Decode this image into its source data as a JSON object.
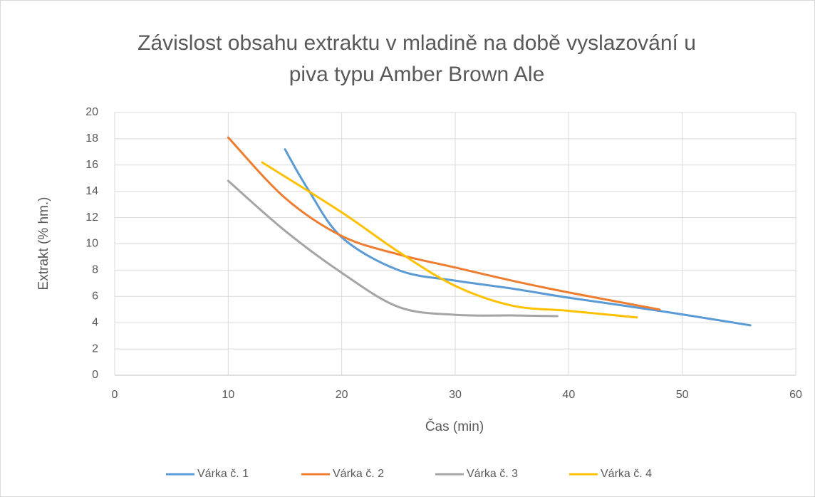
{
  "chart_data": {
    "type": "line",
    "title": [
      "Závislost obsahu extraktu v mladině na době vyslazování u",
      "piva typu Amber Brown Ale"
    ],
    "x_label": "Čas (min)",
    "y_label": "Extrakt (% hm.)",
    "xlim": [
      0,
      60
    ],
    "xticks": [
      0,
      10,
      20,
      30,
      40,
      50,
      60
    ],
    "ylim": [
      0,
      20
    ],
    "yticks": [
      0,
      2,
      4,
      6,
      8,
      10,
      12,
      14,
      16,
      18,
      20
    ],
    "grid": true,
    "smooth": true,
    "legend": "bottom",
    "series": [
      {
        "name": "Várka č. 1",
        "color": "#5b9bd5",
        "x": [
          15,
          17,
          20,
          25,
          30,
          35,
          40,
          48,
          56
        ],
        "values": [
          17.2,
          14.2,
          10.5,
          8.0,
          7.2,
          6.6,
          5.9,
          4.9,
          3.8
        ]
      },
      {
        "name": "Várka č. 2",
        "color": "#ed7d31",
        "x": [
          10,
          15,
          20,
          25,
          30,
          35,
          40,
          48
        ],
        "values": [
          18.1,
          13.5,
          10.6,
          9.2,
          8.2,
          7.2,
          6.3,
          5.0
        ]
      },
      {
        "name": "Várka č. 3",
        "color": "#a5a5a5",
        "x": [
          10,
          15,
          20,
          25,
          30,
          35,
          39
        ],
        "values": [
          14.8,
          11.0,
          7.8,
          5.2,
          4.6,
          4.55,
          4.5
        ]
      },
      {
        "name": "Várka č. 4",
        "color": "#ffc000",
        "x": [
          13,
          20,
          25,
          30,
          35,
          40,
          46
        ],
        "values": [
          16.2,
          12.4,
          9.4,
          6.8,
          5.3,
          4.9,
          4.4
        ]
      }
    ]
  }
}
